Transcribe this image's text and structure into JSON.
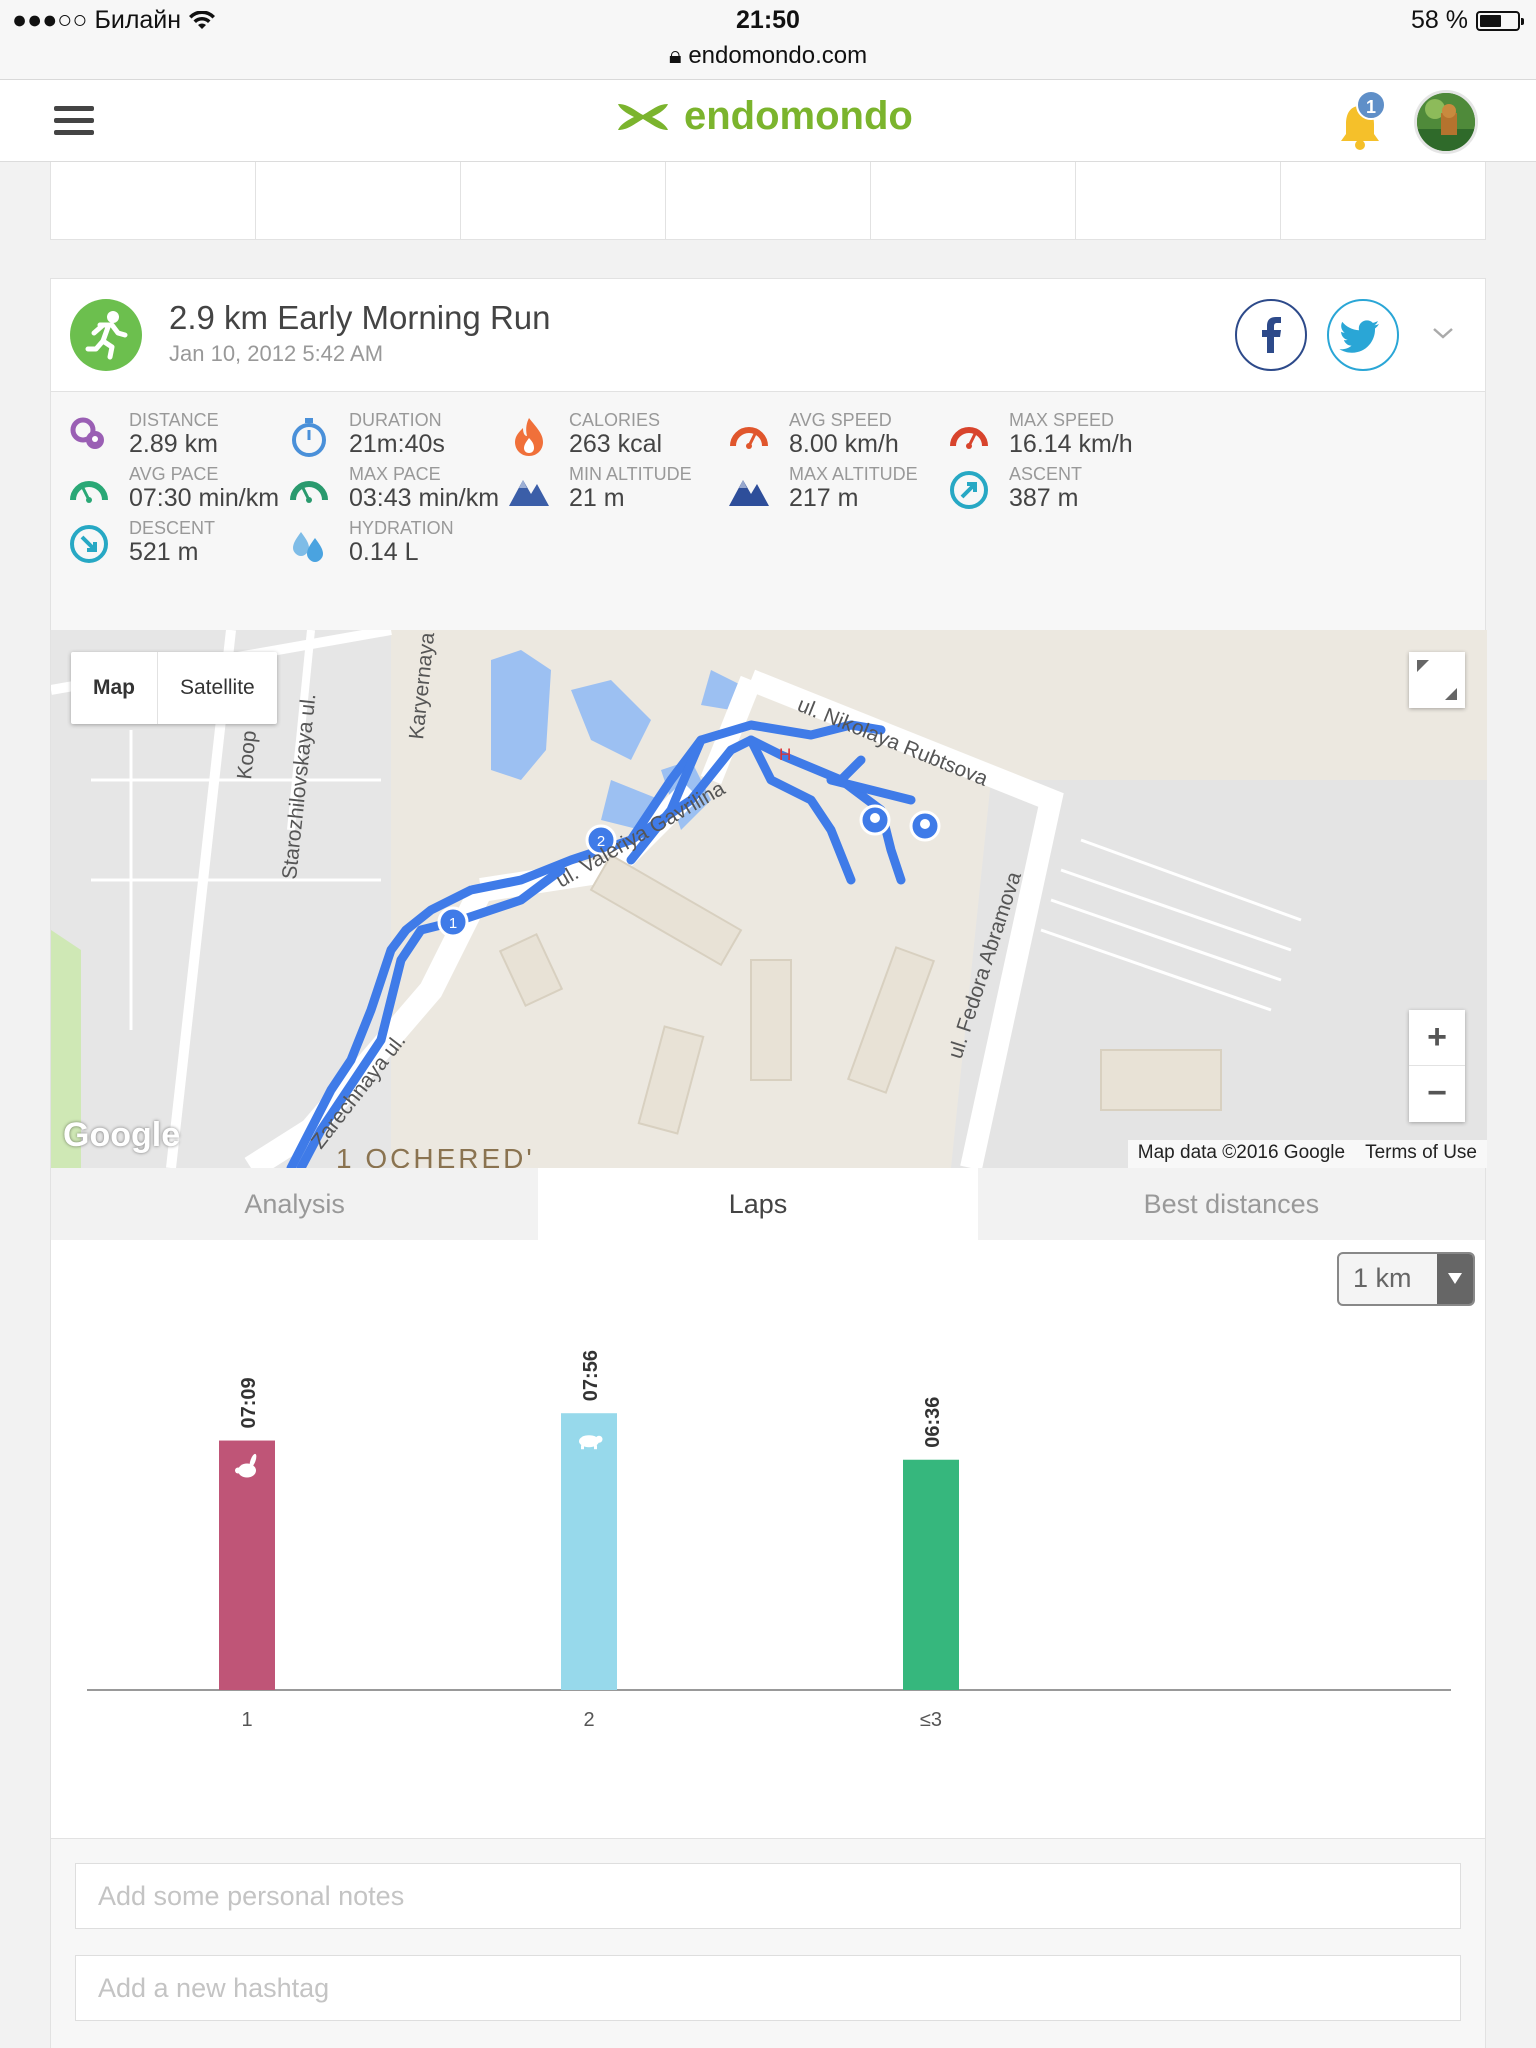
{
  "status_bar": {
    "carrier": "●●●○○ Билайн",
    "time": "21:50",
    "url": "endomondo.com",
    "battery_text": "58 %",
    "battery_level": 0.58
  },
  "header": {
    "brand": "endomondo",
    "notification_count": "1"
  },
  "workout": {
    "title": "2.9 km Early Morning Run",
    "date": "Jan 10, 2012 5:42 AM",
    "stats": [
      {
        "label": "DISTANCE",
        "value": "2.89 km",
        "icon": "pin-pair-icon",
        "color": "#9a5fb4"
      },
      {
        "label": "DURATION",
        "value": "21m:40s",
        "icon": "stopwatch-icon",
        "color": "#4a90d9"
      },
      {
        "label": "CALORIES",
        "value": "263 kcal",
        "icon": "flame-icon",
        "color": "#f0703a"
      },
      {
        "label": "AVG SPEED",
        "value": "8.00 km/h",
        "icon": "speedometer-icon",
        "color": "#e0562c"
      },
      {
        "label": "MAX SPEED",
        "value": "16.14 km/h",
        "icon": "speedometer-icon",
        "color": "#d8442c"
      },
      {
        "label": "AVG PACE",
        "value": "07:30 min/km",
        "icon": "gauge-icon",
        "color": "#2aa876"
      },
      {
        "label": "MAX PACE",
        "value": "03:43 min/km",
        "icon": "gauge-icon",
        "color": "#2a9a6e"
      },
      {
        "label": "MIN ALTITUDE",
        "value": "21 m",
        "icon": "mountain-icon",
        "color": "#3b5ea8"
      },
      {
        "label": "MAX ALTITUDE",
        "value": "217 m",
        "icon": "mountain-icon",
        "color": "#2e4e9a"
      },
      {
        "label": "ASCENT",
        "value": "387 m",
        "icon": "arrow-up-right-icon",
        "color": "#27a8c4"
      },
      {
        "label": "DESCENT",
        "value": "521 m",
        "icon": "arrow-down-right-icon",
        "color": "#27a8c4"
      },
      {
        "label": "HYDRATION",
        "value": "0.14 L",
        "icon": "drops-icon",
        "color": "#4aa3e0"
      }
    ]
  },
  "map": {
    "type_map": "Map",
    "type_satellite": "Satellite",
    "zoom_in": "+",
    "zoom_out": "−",
    "google": "Google",
    "attribution": "Map data ©2016 Google",
    "terms": "Terms of Use",
    "street_labels": [
      "ul. Nikolaya Rubtsova",
      "ul. Valeriya Gavrilina",
      "ul. Fedora Abramova",
      "Zarechnaya ul.",
      "Starozhilovskaya ul.",
      "Karyernaya ul.",
      "Koop",
      "1 OCHERED'",
      "H"
    ],
    "lap_markers": [
      "1",
      "2"
    ]
  },
  "tabs": [
    {
      "label": "Analysis",
      "active": false
    },
    {
      "label": "Laps",
      "active": true
    },
    {
      "label": "Best distances",
      "active": false
    }
  ],
  "laps": {
    "selector": "1 km",
    "chart_data": {
      "type": "bar",
      "categories": [
        "1",
        "2",
        "≤3"
      ],
      "values_minutes": [
        7.15,
        7.9333,
        6.6
      ],
      "value_labels": [
        "07:09",
        "07:56",
        "06:36"
      ],
      "colors": [
        "#bf5577",
        "#97d9eb",
        "#36b77d"
      ],
      "badges": [
        "rabbit-icon",
        "turtle-icon",
        ""
      ]
    }
  },
  "notes": {
    "notes_placeholder": "Add some personal notes",
    "hashtag_placeholder": "Add a new hashtag"
  }
}
